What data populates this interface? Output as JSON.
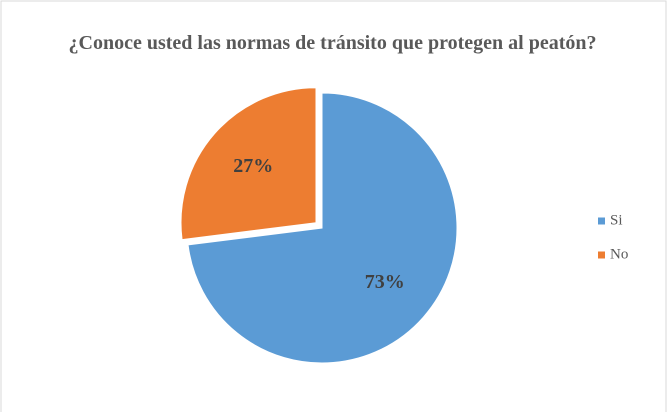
{
  "chart_data": {
    "type": "pie",
    "title": "¿Conoce usted las normas de tránsito que protegen al peatón?",
    "categories": [
      "Si",
      "No"
    ],
    "values": [
      73,
      27
    ],
    "value_labels": [
      "73%",
      "27%"
    ],
    "colors": [
      "#5b9bd5",
      "#ed7d31"
    ],
    "legend": "right"
  }
}
